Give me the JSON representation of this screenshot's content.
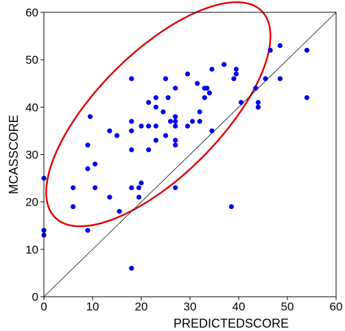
{
  "chart_data": {
    "type": "scatter",
    "xlabel": "PREDICTEDSCORE",
    "ylabel": "MCASSCORE",
    "xlim": [
      0,
      60
    ],
    "ylim": [
      0,
      60
    ],
    "x_ticks": [
      0,
      10,
      20,
      30,
      40,
      50,
      60
    ],
    "y_ticks": [
      0,
      10,
      20,
      30,
      40,
      50,
      60
    ],
    "grid": false,
    "reference_line": {
      "from": [
        0,
        0
      ],
      "to": [
        60,
        60
      ]
    },
    "highlight_ellipse": {
      "center": [
        23.5,
        38.5
      ],
      "rx": 30,
      "ry": 13,
      "rotation_deg": 45
    },
    "colors": {
      "points": "#0000ee",
      "ellipse": "#dd0000",
      "reference_line": "#000000"
    },
    "series": [
      {
        "points": [
          [
            0,
            25
          ],
          [
            0,
            14
          ],
          [
            0,
            13
          ],
          [
            6,
            23
          ],
          [
            6,
            19
          ],
          [
            9,
            14
          ],
          [
            9,
            27
          ],
          [
            9,
            32
          ],
          [
            9.5,
            38
          ],
          [
            10.5,
            28
          ],
          [
            10.5,
            23
          ],
          [
            13.5,
            35
          ],
          [
            13.5,
            21
          ],
          [
            15,
            34
          ],
          [
            15.5,
            18
          ],
          [
            18,
            46
          ],
          [
            18,
            37
          ],
          [
            18,
            35
          ],
          [
            18,
            31
          ],
          [
            18,
            23
          ],
          [
            18,
            6
          ],
          [
            19.5,
            21
          ],
          [
            19.5,
            23
          ],
          [
            20,
            24
          ],
          [
            20,
            36
          ],
          [
            21.5,
            41
          ],
          [
            21.5,
            36
          ],
          [
            21.5,
            31
          ],
          [
            23,
            42
          ],
          [
            23,
            40
          ],
          [
            23,
            36
          ],
          [
            23,
            33
          ],
          [
            24.5,
            39
          ],
          [
            25,
            46
          ],
          [
            25,
            34
          ],
          [
            25.5,
            42
          ],
          [
            26,
            37
          ],
          [
            27,
            44
          ],
          [
            27,
            38
          ],
          [
            27,
            37
          ],
          [
            27,
            36
          ],
          [
            27,
            33
          ],
          [
            27,
            32
          ],
          [
            27,
            23
          ],
          [
            29.5,
            47
          ],
          [
            29.5,
            36
          ],
          [
            30.5,
            37
          ],
          [
            31.5,
            45
          ],
          [
            32,
            39
          ],
          [
            32,
            37
          ],
          [
            33,
            44
          ],
          [
            33,
            42
          ],
          [
            33.5,
            44
          ],
          [
            34,
            43
          ],
          [
            34.5,
            48
          ],
          [
            34.5,
            35
          ],
          [
            37,
            49
          ],
          [
            38.5,
            19
          ],
          [
            39,
            46
          ],
          [
            39.5,
            47
          ],
          [
            39.5,
            48
          ],
          [
            40.5,
            41
          ],
          [
            43.5,
            44
          ],
          [
            44,
            41
          ],
          [
            44,
            40
          ],
          [
            45.5,
            46
          ],
          [
            46.5,
            52
          ],
          [
            48.5,
            53
          ],
          [
            48.5,
            46
          ],
          [
            54,
            52
          ],
          [
            54,
            42
          ]
        ]
      }
    ]
  }
}
